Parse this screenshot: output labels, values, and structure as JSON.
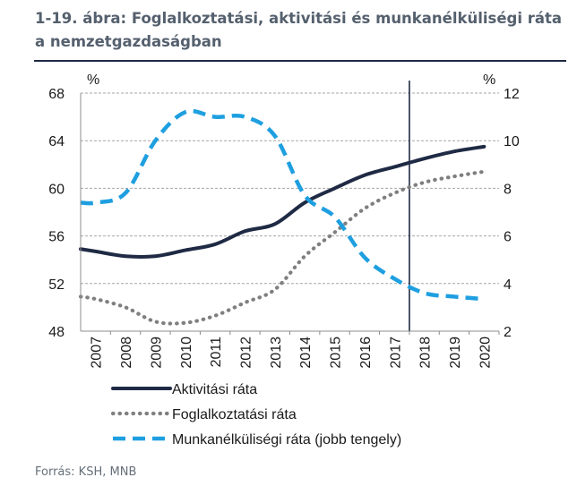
{
  "title": "1-19. ábra: Foglalkoztatási, aktivitási és munkanélküliségi ráta a nemzetgazdaságban",
  "source": "Forrás: KSH, MNB",
  "colors": {
    "aktivitasi": "#1f2a44",
    "foglalkoztatasi": "#7f7f7f",
    "munkanelkuli": "#1e9fe0",
    "grid": "#a6a6a6",
    "marker": "#1f2a44"
  },
  "chart_data": {
    "type": "line",
    "x": [
      2007,
      2008,
      2009,
      2010,
      2011,
      2012,
      2013,
      2014,
      2015,
      2016,
      2017,
      2018,
      2019,
      2020
    ],
    "x_tick_labels": [
      "2007",
      "2008",
      "2009",
      "2010",
      "2011",
      "2012",
      "2013",
      "2014",
      "2015",
      "2016",
      "2017",
      "2018",
      "2019",
      "2020"
    ],
    "left_axis": {
      "unit_label": "%",
      "ylim": [
        48,
        68
      ],
      "ticks": [
        48,
        52,
        56,
        60,
        64,
        68
      ]
    },
    "right_axis": {
      "unit_label": "%",
      "ylim": [
        2,
        12
      ],
      "ticks": [
        2,
        4,
        6,
        8,
        10,
        12
      ]
    },
    "grid": true,
    "vertical_marker_x": 2017.5,
    "legend_position": "bottom",
    "series": [
      {
        "name": "Aktivitási ráta",
        "axis": "left",
        "style": "solid",
        "x": [
          2006.5,
          2007,
          2008,
          2009,
          2010,
          2011,
          2012,
          2013,
          2014,
          2015,
          2016,
          2017,
          2018,
          2019,
          2020
        ],
        "values": [
          54.9,
          54.7,
          54.3,
          54.3,
          54.8,
          55.3,
          56.4,
          57.0,
          58.8,
          60.0,
          61.1,
          61.8,
          62.5,
          63.1,
          63.5
        ]
      },
      {
        "name": "Foglalkoztatási ráta",
        "axis": "left",
        "style": "dotted",
        "x": [
          2006.5,
          2007,
          2008,
          2009,
          2010,
          2011,
          2012,
          2013,
          2014,
          2015,
          2016,
          2017,
          2018,
          2019,
          2020
        ],
        "values": [
          50.9,
          50.7,
          50.0,
          48.8,
          48.7,
          49.3,
          50.4,
          51.5,
          54.3,
          56.3,
          58.3,
          59.6,
          60.5,
          61.0,
          61.4
        ]
      },
      {
        "name": "Munkanélküliségi ráta (jobb tengely)",
        "axis": "right",
        "style": "dashed",
        "x": [
          2006.5,
          2007,
          2008,
          2009,
          2010,
          2011,
          2012,
          2013,
          2014,
          2015,
          2016,
          2017,
          2018,
          2019,
          2020
        ],
        "values": [
          7.4,
          7.4,
          7.8,
          10.0,
          11.2,
          11.0,
          11.0,
          10.2,
          7.7,
          6.8,
          5.1,
          4.2,
          3.6,
          3.45,
          3.35
        ]
      }
    ]
  }
}
